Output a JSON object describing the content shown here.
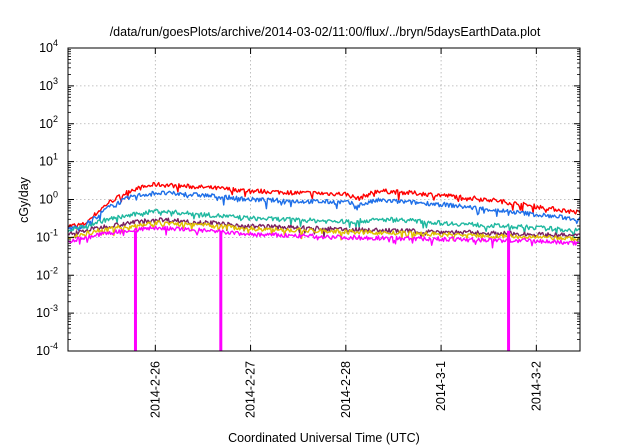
{
  "chart_data": {
    "type": "line",
    "title": "/data/run/goesPlots/archive/2014-03-02/11:00/flux/../bryn/5daysEarthData.plot",
    "xlabel": "Coordinated Universal Time (UTC)",
    "ylabel": "cGy/day",
    "yscale": "log",
    "ylim": [
      0.0001,
      10000
    ],
    "xlim": [
      "2014-02-25T02:00",
      "2014-03-02T11:00"
    ],
    "y_ticks": [
      {
        "value": 0.0001,
        "base": "10",
        "exp": "-4"
      },
      {
        "value": 0.001,
        "base": "10",
        "exp": "-3"
      },
      {
        "value": 0.01,
        "base": "10",
        "exp": "-2"
      },
      {
        "value": 0.1,
        "base": "10",
        "exp": "-1"
      },
      {
        "value": 1,
        "base": "10",
        "exp": "0"
      },
      {
        "value": 10,
        "base": "10",
        "exp": "1"
      },
      {
        "value": 100,
        "base": "10",
        "exp": "2"
      },
      {
        "value": 1000,
        "base": "10",
        "exp": "3"
      },
      {
        "value": 10000,
        "base": "10",
        "exp": "4"
      }
    ],
    "x_ticks": [
      {
        "value": "2014-02-26T00:00",
        "label": "2014-2-26"
      },
      {
        "value": "2014-02-27T00:00",
        "label": "2014-2-27"
      },
      {
        "value": "2014-02-28T00:00",
        "label": "2014-2-28"
      },
      {
        "value": "2014-03-01T00:00",
        "label": "2014-3-1"
      },
      {
        "value": "2014-03-02T00:00",
        "label": "2014-3-2"
      }
    ],
    "grid": true,
    "series": [
      {
        "color": "#ff0000",
        "points": [
          [
            "2014-02-25T02:00",
            0.2
          ],
          [
            "2014-02-25T06:00",
            0.22
          ],
          [
            "2014-02-25T12:00",
            0.8
          ],
          [
            "2014-02-25T18:00",
            1.8
          ],
          [
            "2014-02-26T00:00",
            2.5
          ],
          [
            "2014-02-26T12:00",
            2.1
          ],
          [
            "2014-02-27T00:00",
            1.7
          ],
          [
            "2014-02-27T12:00",
            1.5
          ],
          [
            "2014-02-28T00:00",
            1.4
          ],
          [
            "2014-02-28T03:00",
            1.05
          ],
          [
            "2014-02-28T08:00",
            1.7
          ],
          [
            "2014-02-28T16:00",
            1.5
          ],
          [
            "2014-03-01T00:00",
            1.3
          ],
          [
            "2014-03-01T12:00",
            1.0
          ],
          [
            "2014-03-02T00:00",
            0.65
          ],
          [
            "2014-03-02T11:00",
            0.45
          ]
        ]
      },
      {
        "color": "#1e6fe8",
        "points": [
          [
            "2014-02-25T02:00",
            0.17
          ],
          [
            "2014-02-25T06:00",
            0.2
          ],
          [
            "2014-02-25T12:00",
            0.6
          ],
          [
            "2014-02-25T18:00",
            1.2
          ],
          [
            "2014-02-26T00:00",
            1.5
          ],
          [
            "2014-02-26T12:00",
            1.3
          ],
          [
            "2014-02-27T00:00",
            1.0
          ],
          [
            "2014-02-27T12:00",
            0.9
          ],
          [
            "2014-02-28T00:00",
            0.85
          ],
          [
            "2014-02-28T03:00",
            0.7
          ],
          [
            "2014-02-28T08:00",
            0.95
          ],
          [
            "2014-02-28T16:00",
            0.85
          ],
          [
            "2014-03-01T00:00",
            0.75
          ],
          [
            "2014-03-01T12:00",
            0.55
          ],
          [
            "2014-03-02T00:00",
            0.4
          ],
          [
            "2014-03-02T11:00",
            0.3
          ]
        ]
      },
      {
        "color": "#20b8a0",
        "points": [
          [
            "2014-02-25T02:00",
            0.15
          ],
          [
            "2014-02-25T12:00",
            0.3
          ],
          [
            "2014-02-26T00:00",
            0.5
          ],
          [
            "2014-02-26T12:00",
            0.4
          ],
          [
            "2014-02-27T00:00",
            0.32
          ],
          [
            "2014-02-28T00:00",
            0.26
          ],
          [
            "2014-02-28T12:00",
            0.3
          ],
          [
            "2014-03-01T00:00",
            0.24
          ],
          [
            "2014-03-02T00:00",
            0.18
          ],
          [
            "2014-03-02T11:00",
            0.15
          ]
        ]
      },
      {
        "color": "#7a2060",
        "points": [
          [
            "2014-02-25T02:00",
            0.12
          ],
          [
            "2014-02-25T12:00",
            0.2
          ],
          [
            "2014-02-26T00:00",
            0.3
          ],
          [
            "2014-02-26T12:00",
            0.25
          ],
          [
            "2014-02-27T00:00",
            0.2
          ],
          [
            "2014-02-28T00:00",
            0.16
          ],
          [
            "2014-03-01T00:00",
            0.14
          ],
          [
            "2014-03-02T00:00",
            0.12
          ],
          [
            "2014-03-02T11:00",
            0.11
          ]
        ]
      },
      {
        "color": "#e0c000",
        "points": [
          [
            "2014-02-25T02:00",
            0.1
          ],
          [
            "2014-02-25T12:00",
            0.17
          ],
          [
            "2014-02-26T00:00",
            0.24
          ],
          [
            "2014-02-26T12:00",
            0.21
          ],
          [
            "2014-02-27T00:00",
            0.17
          ],
          [
            "2014-02-28T00:00",
            0.14
          ],
          [
            "2014-03-01T00:00",
            0.12
          ],
          [
            "2014-03-02T00:00",
            0.1
          ],
          [
            "2014-03-02T11:00",
            0.09
          ]
        ]
      },
      {
        "color": "#ff00ff",
        "points": [
          [
            "2014-02-25T02:00",
            0.08
          ],
          [
            "2014-02-25T12:00",
            0.13
          ],
          [
            "2014-02-26T00:00",
            0.18
          ],
          [
            "2014-02-26T12:00",
            0.15
          ],
          [
            "2014-02-27T00:00",
            0.12
          ],
          [
            "2014-02-28T00:00",
            0.1
          ],
          [
            "2014-03-01T00:00",
            0.09
          ],
          [
            "2014-03-02T00:00",
            0.08
          ],
          [
            "2014-03-02T11:00",
            0.07
          ]
        ],
        "dropouts": [
          "2014-02-25T19:00",
          "2014-02-26T16:30",
          "2014-03-01T17:00"
        ]
      }
    ]
  }
}
